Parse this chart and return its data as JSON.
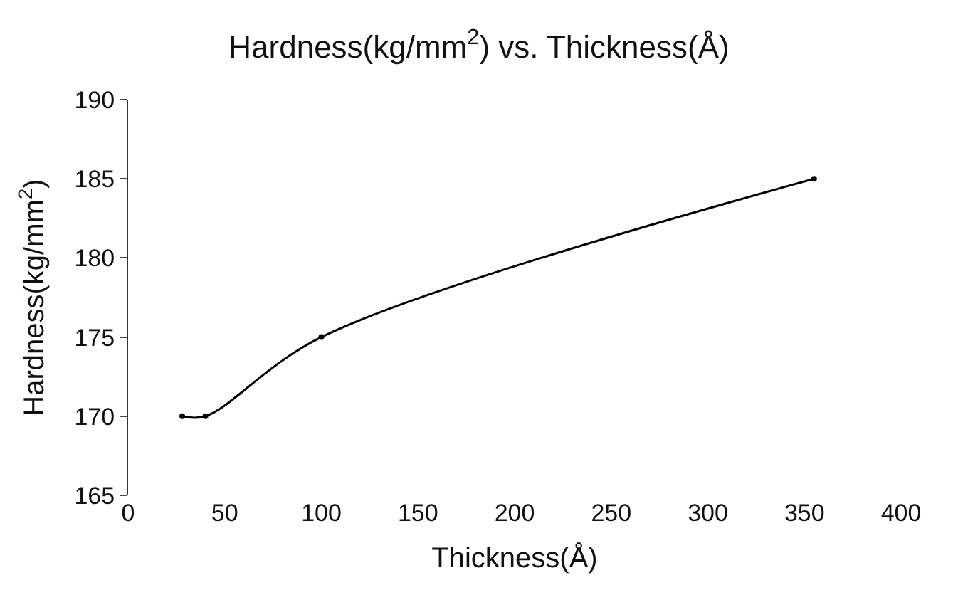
{
  "chart_data": {
    "type": "line",
    "title": "Hardness(kg/mm$^{2}$) vs. Thickness(Å)",
    "xlabel": "Thickness(Å)",
    "ylabel": "Hardness(kg/mm$^{2}$)",
    "x": [
      28,
      40,
      100,
      355
    ],
    "series": [
      {
        "color": "#000000",
        "values": [
          170,
          170,
          175,
          185
        ]
      }
    ],
    "xlim": [
      0,
      400
    ],
    "xticks": [
      0,
      50,
      100,
      150,
      200,
      250,
      300,
      350,
      400
    ],
    "ylim": [
      165,
      190
    ],
    "yticks": [
      165,
      170,
      175,
      180,
      185,
      190
    ],
    "marker": "circle",
    "line_style": "solid"
  }
}
